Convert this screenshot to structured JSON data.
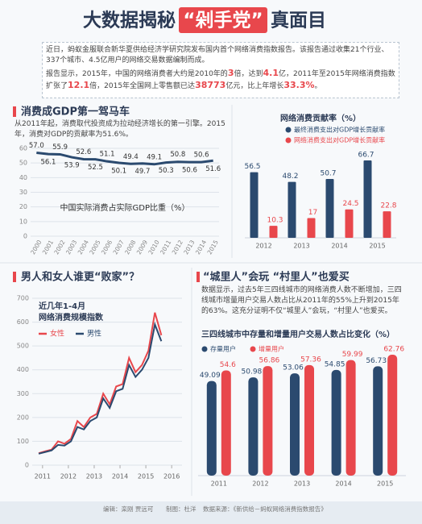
{
  "header": {
    "title": [
      "大数据揭秘",
      "“剁手党”",
      "真面目"
    ]
  },
  "intro": {
    "paragraph1": "近日，蚂蚁金服联合新华夏供给经济学研究院发布国内首个网络消费指数报告。该报告通过收集21个行业、337个城市、4.5亿用户的网络交易数据编制而成。",
    "paragraph2": [
      "报告显示，2015年，中国的网络消费者大约是2010年的",
      "3",
      "倍，达到",
      "4.1",
      "亿，2011年至2015年网络消费指数扩张了",
      "12.1",
      "倍，2015年全国网上零售额已达",
      "38773",
      "亿元，比上年增长",
      "33.3%",
      "。"
    ]
  },
  "sections": [
    {
      "heading": "消费成GDP第一驾马车",
      "text": "从2011年起，消费取代投资成为拉动经济增长的第一引擎。2015年，消费对GDP的贡献率为51.6%。"
    },
    {
      "heading": "男人和女人谁更“败家”？"
    },
    {
      "heading": "“城里人”会玩 “村里人”也爱买",
      "text": "数据显示，过去5年三四线城市的网络消费人数不断增加，三四线城市增量用户交易人数占比从2011年的55%上升到2015年的63%。这充分证明不仅“城里人”会玩，“村里人”也爱买。"
    }
  ],
  "chart_data": [
    {
      "type": "line",
      "title": "中国实际消费占实际GDP比重（%）",
      "categories": [
        "2000",
        "2001",
        "2002",
        "2003",
        "2004",
        "2005",
        "2006",
        "2007",
        "2008",
        "2009",
        "2010",
        "2011",
        "2012",
        "2013",
        "2014",
        "2015"
      ],
      "values": [
        57.0,
        56.1,
        55.9,
        53.9,
        52.6,
        52.5,
        51.1,
        50.1,
        49.4,
        49.7,
        49.1,
        50.3,
        50.8,
        50.6,
        50.6,
        51.6
      ],
      "value_labels": [
        "57.0",
        "56.1",
        "55.9",
        "53.9",
        "52.6",
        "52.5",
        "51.1",
        "50.1",
        "49.4",
        "49.7",
        "49.1",
        "50.3",
        "50.8",
        "50.6",
        "50.6",
        "51.6"
      ],
      "color": "#2b4a6f",
      "ylim": [
        0,
        60
      ],
      "yticks": [
        0,
        10,
        20,
        30,
        40,
        50,
        60
      ],
      "grid": true
    },
    {
      "type": "bar",
      "title": "网络消费贡献率（%）",
      "categories": [
        "2012",
        "2013",
        "2014",
        "2015"
      ],
      "series": [
        {
          "name": "最终消费支出对GDP增长贡献率",
          "color": "#2b4a6f",
          "values": [
            56.5,
            48.2,
            50.7,
            66.7
          ]
        },
        {
          "name": "网络消费支出对GDP增长贡献率",
          "color": "#e8474c",
          "values": [
            10.3,
            17,
            24.5,
            22.8
          ]
        }
      ]
    },
    {
      "type": "line",
      "title": "近几年1-4月",
      "subtitle": "网络消费规模指数",
      "x": [
        2010.85,
        2011.1,
        2011.35,
        2011.6,
        2011.85,
        2012.1,
        2012.35,
        2012.6,
        2012.85,
        2013.1,
        2013.35,
        2013.6,
        2013.85,
        2014.1,
        2014.35,
        2014.6,
        2014.85,
        2015.1,
        2015.35,
        2015.6
      ],
      "series": [
        {
          "name": "女性",
          "color": "#e8474c",
          "values": [
            50,
            58,
            65,
            100,
            90,
            110,
            185,
            160,
            200,
            215,
            300,
            255,
            330,
            340,
            450,
            390,
            420,
            480,
            640,
            545
          ]
        },
        {
          "name": "男性",
          "color": "#2b4a6f",
          "values": [
            48,
            55,
            62,
            85,
            82,
            100,
            160,
            150,
            185,
            200,
            280,
            240,
            310,
            320,
            420,
            370,
            400,
            450,
            590,
            520
          ]
        }
      ],
      "xlim": [
        2010.6,
        2016.4
      ],
      "xticks": [
        2011,
        2012,
        2013,
        2014,
        2015,
        2016
      ],
      "ylim": [
        0,
        700
      ],
      "yticks": [
        0,
        100,
        200,
        300,
        400,
        500,
        600,
        700
      ],
      "grid": true
    },
    {
      "type": "bar",
      "title": "三四线城市中存量和增量用户交易人数占比变化（%）",
      "categories": [
        "2011",
        "2012",
        "2013",
        "2014",
        "2015"
      ],
      "series": [
        {
          "name": "存量用户",
          "color": "#2b4a6f",
          "values": [
            49.09,
            50.98,
            53.06,
            54.85,
            56.73
          ]
        },
        {
          "name": "增量用户",
          "color": "#e8474c",
          "values": [
            54.6,
            56.86,
            57.36,
            59.99,
            62.76
          ]
        }
      ]
    }
  ],
  "footer": [
    "编辑：栾刚 贾远可",
    "制图：杜洋",
    "数据来源：《新供给－蚂蚁网络消费指数报告》"
  ]
}
